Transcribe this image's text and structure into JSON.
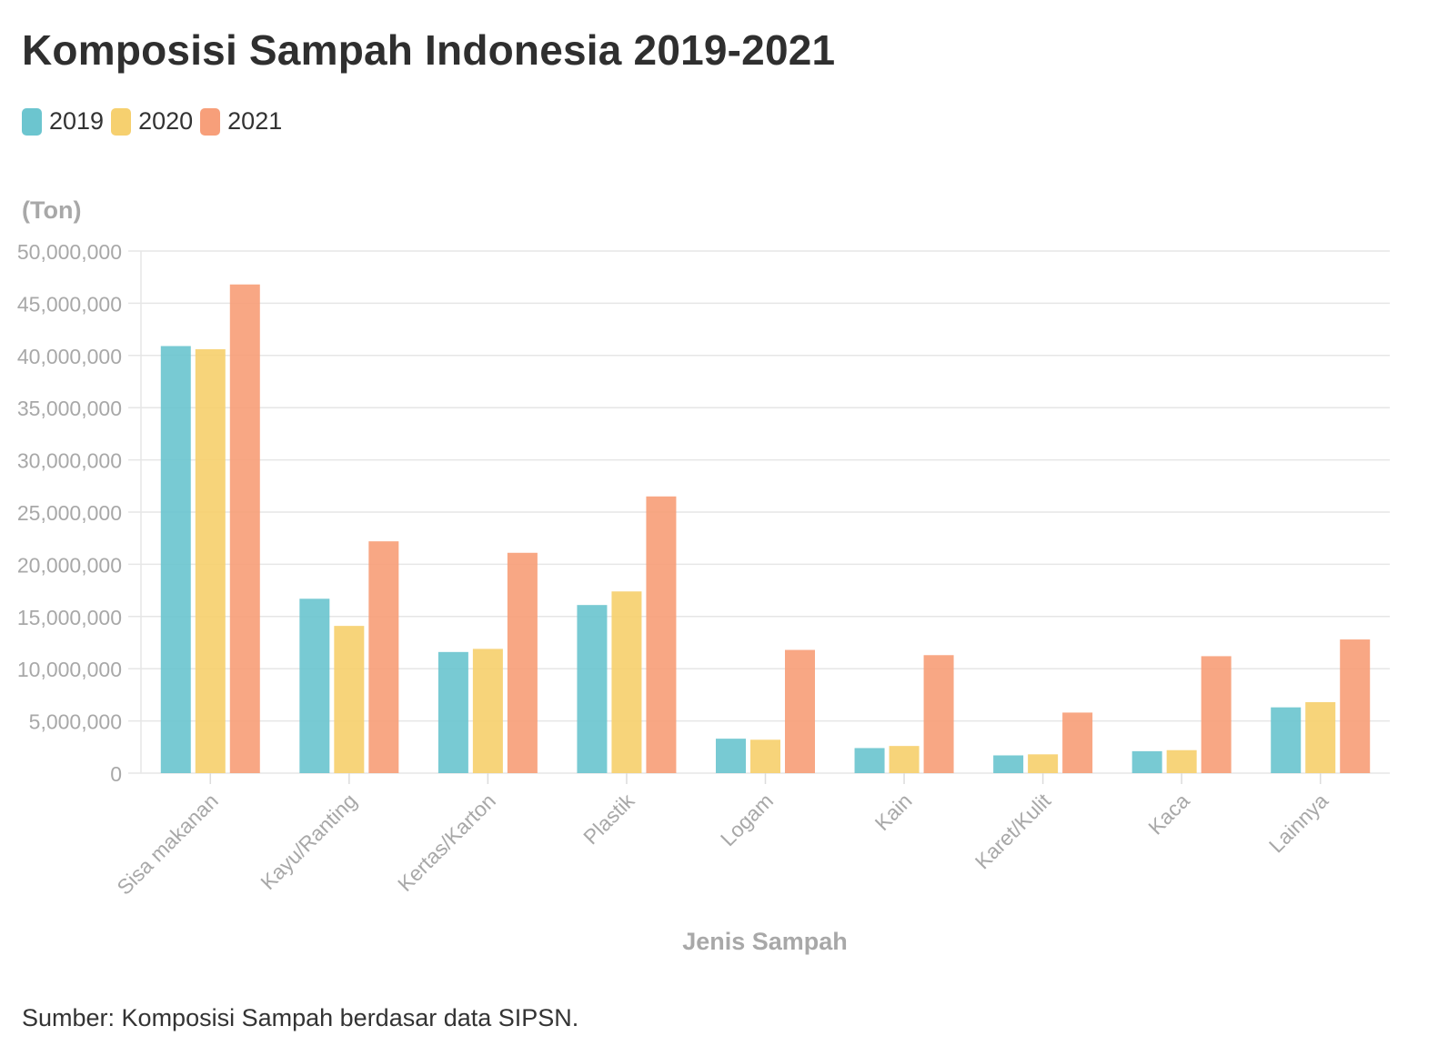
{
  "page": {
    "title": "Komposisi Sampah Indonesia 2019-2021",
    "unit_label": "(Ton)",
    "source": "Sumber: Komposisi Sampah berdasar data SIPSN."
  },
  "chart_data": {
    "type": "bar",
    "title": "Komposisi Sampah Indonesia 2019-2021",
    "xlabel": "Jenis Sampah",
    "ylabel": "(Ton)",
    "ylim": [
      0,
      50000000
    ],
    "yticks": [
      0,
      5000000,
      10000000,
      15000000,
      20000000,
      25000000,
      30000000,
      35000000,
      40000000,
      45000000,
      50000000
    ],
    "ytick_labels": [
      "0",
      "5,000,000",
      "10,000,000",
      "15,000,000",
      "20,000,000",
      "25,000,000",
      "30,000,000",
      "35,000,000",
      "40,000,000",
      "45,000,000",
      "50,000,000"
    ],
    "grid": true,
    "legend_position": "top-left",
    "categories": [
      "Sisa makanan",
      "Kayu/Ranting",
      "Kertas/Karton",
      "Plastik",
      "Logam",
      "Kain",
      "Karet/Kulit",
      "Kaca",
      "Lainnya"
    ],
    "series": [
      {
        "name": "2019",
        "color": "#6cc5cf",
        "values": [
          40900000,
          16700000,
          11600000,
          16100000,
          3300000,
          2400000,
          1700000,
          2100000,
          6300000
        ]
      },
      {
        "name": "2020",
        "color": "#f6d06f",
        "values": [
          40600000,
          14100000,
          11900000,
          17400000,
          3200000,
          2600000,
          1800000,
          2200000,
          6800000
        ]
      },
      {
        "name": "2021",
        "color": "#f79f7a",
        "values": [
          46800000,
          22200000,
          21100000,
          26500000,
          11800000,
          11300000,
          5800000,
          11200000,
          12800000
        ]
      }
    ]
  }
}
